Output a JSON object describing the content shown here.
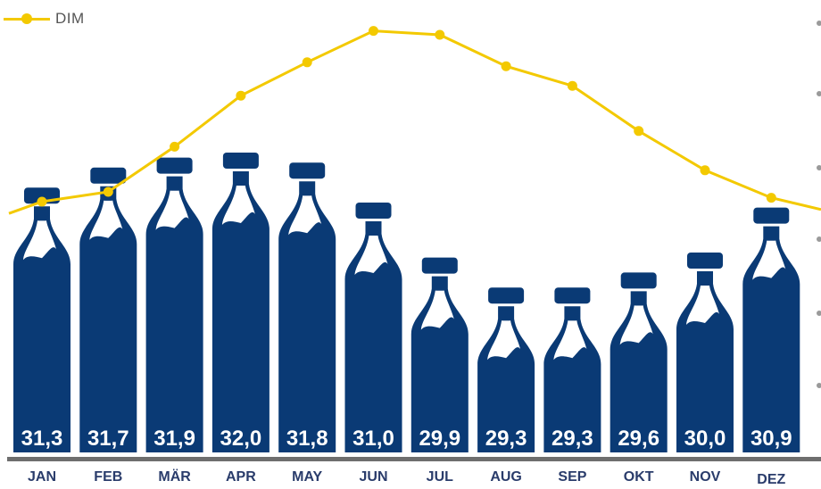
{
  "chart_data": {
    "type": "bar",
    "categories": [
      "JAN",
      "FEB",
      "MÄR",
      "APR",
      "MAY",
      "JUN",
      "JUL",
      "AUG",
      "SEP",
      "OKT",
      "NOV",
      "DEZ"
    ],
    "series": [
      {
        "values": [
          31.3,
          31.7,
          31.9,
          32.0,
          31.8,
          31.0,
          29.9,
          29.3,
          29.3,
          29.6,
          30.0,
          30.9
        ]
      },
      {
        "name": "DIM",
        "type": "line",
        "values": [
          3.0,
          3.5,
          5.8,
          8.4,
          10.1,
          11.7,
          11.5,
          9.9,
          8.9,
          6.6,
          4.6,
          3.2
        ]
      }
    ],
    "value_labels": [
      "31,3",
      "31,7",
      "31,9",
      "32,0",
      "31,8",
      "31,0",
      "29,9",
      "29,3",
      "29,3",
      "29,6",
      "30,0",
      "30,9"
    ],
    "bar_range": [
      26,
      33
    ],
    "line_range": [
      0,
      13
    ],
    "legend": {
      "position": "top-left",
      "label": "DIM"
    }
  },
  "colors": {
    "bottle": "#0a3a75",
    "line": "#f3c900",
    "axis": "#6e6e6e",
    "label": "#2a3c6b",
    "tick": "#9a9a9a"
  },
  "icons": {
    "bar_shape": "milk-bottle-icon"
  }
}
